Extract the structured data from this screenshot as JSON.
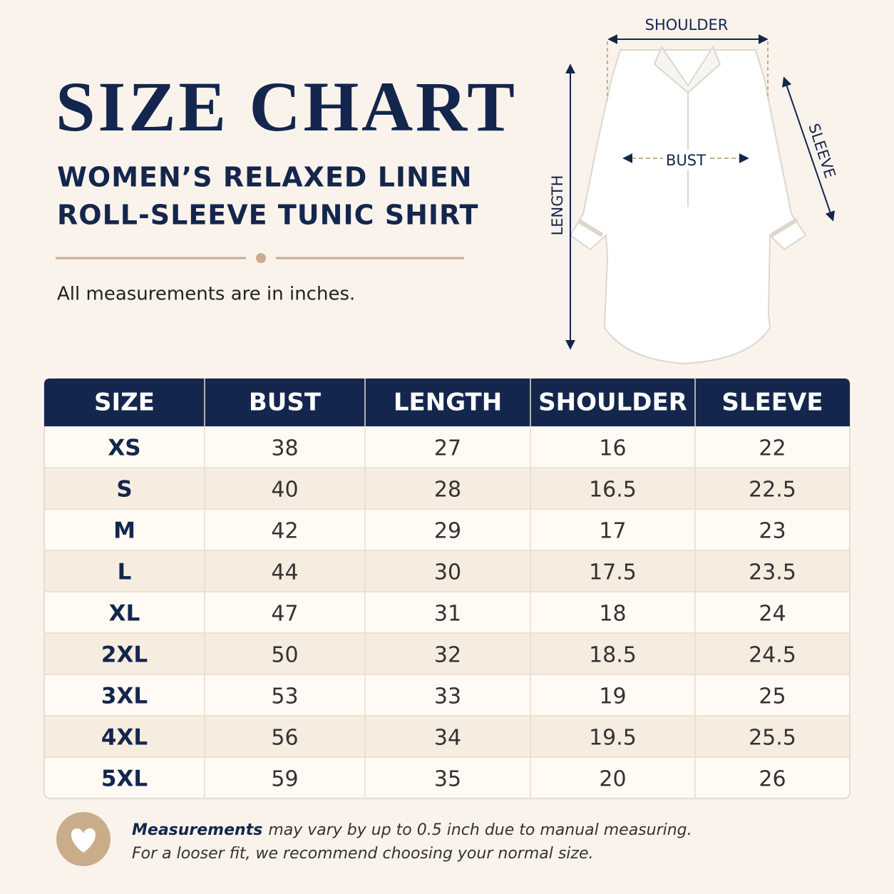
{
  "header": {
    "title": "SIZE CHART",
    "subtitle": [
      "WOMEN’S RELAXED LINEN",
      "ROLL-SLEEVE TUNIC SHIRT"
    ],
    "note": "All measurements are in inches."
  },
  "diagram": {
    "shoulder": "SHOULDER",
    "length": "LENGTH",
    "bust": "BUST",
    "sleeve": "SLEEVE"
  },
  "table": {
    "columns": [
      "SIZE",
      "BUST",
      "LENGTH",
      "SHOULDER",
      "SLEEVE"
    ],
    "rows": [
      [
        "XS",
        38,
        27,
        16,
        22
      ],
      [
        "S",
        40,
        28,
        16.5,
        22.5
      ],
      [
        "M",
        42,
        29,
        17,
        23
      ],
      [
        "L",
        44,
        30,
        17.5,
        23.5
      ],
      [
        "XL",
        47,
        31,
        18,
        24
      ],
      [
        "2XL",
        50,
        32,
        18.5,
        24.5
      ],
      [
        "3XL",
        53,
        33,
        19,
        25
      ],
      [
        "4XL",
        56,
        34,
        19.5,
        25.5
      ],
      [
        "5XL",
        59,
        35,
        20,
        26
      ]
    ]
  },
  "footer": {
    "lines": [
      {
        "bold": "Measurements",
        "rest": "may vary by up to 0.5 inch due to manual measuring."
      },
      "For a looser fit, we recommend choosing your normal size."
    ]
  }
}
